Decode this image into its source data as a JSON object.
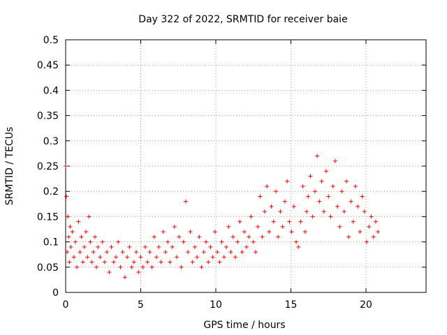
{
  "chart_data": {
    "type": "scatter",
    "title": "Day 322 of 2022, SRMTID for receiver baie",
    "xlabel": "GPS time / hours",
    "ylabel": "SRMTID / TECUs",
    "xlim": [
      0,
      24
    ],
    "ylim": [
      0,
      0.5
    ],
    "grid": true,
    "marker": "+",
    "color": "#ff0000",
    "x_ticks": [
      0,
      5,
      10,
      15,
      20
    ],
    "x_tick_labels": [
      "0",
      "5",
      "10",
      "15",
      "20"
    ],
    "y_ticks": [
      0,
      0.05,
      0.1,
      0.15,
      0.2,
      0.25,
      0.3,
      0.35,
      0.4,
      0.45,
      0.5
    ],
    "y_tick_labels": [
      "0",
      "0.05",
      "0.1",
      "0.15",
      "0.2",
      "0.25",
      "0.3",
      "0.35",
      "0.4",
      "0.45",
      "0.5"
    ],
    "series": [
      {
        "name": "SRMTID",
        "x": [
          0.0,
          0.05,
          0.1,
          0.15,
          0.2,
          0.25,
          0.3,
          0.35,
          0.45,
          0.55,
          0.65,
          0.75,
          0.85,
          0.95,
          1.05,
          1.15,
          1.25,
          1.35,
          1.45,
          1.55,
          1.65,
          1.75,
          1.85,
          1.95,
          2.05,
          2.15,
          2.3,
          2.45,
          2.6,
          2.75,
          2.9,
          3.05,
          3.2,
          3.35,
          3.5,
          3.65,
          3.8,
          3.95,
          4.1,
          4.25,
          4.4,
          4.55,
          4.7,
          4.85,
          5.0,
          5.15,
          5.3,
          5.45,
          5.6,
          5.75,
          5.9,
          6.05,
          6.2,
          6.35,
          6.5,
          6.65,
          6.8,
          6.95,
          7.1,
          7.25,
          7.4,
          7.55,
          7.7,
          7.85,
          8.0,
          8.15,
          8.3,
          8.45,
          8.6,
          8.75,
          8.9,
          9.05,
          9.2,
          9.35,
          9.5,
          9.65,
          9.8,
          9.95,
          10.1,
          10.25,
          10.4,
          10.55,
          10.7,
          10.85,
          11.0,
          11.15,
          11.3,
          11.45,
          11.6,
          11.75,
          11.9,
          12.05,
          12.2,
          12.35,
          12.5,
          12.65,
          12.8,
          12.95,
          13.1,
          13.25,
          13.4,
          13.55,
          13.7,
          13.85,
          14.0,
          14.15,
          14.3,
          14.45,
          14.6,
          14.75,
          14.9,
          15.05,
          15.2,
          15.35,
          15.5,
          15.65,
          15.8,
          15.95,
          16.05,
          16.15,
          16.3,
          16.45,
          16.6,
          16.75,
          16.9,
          17.05,
          17.2,
          17.35,
          17.5,
          17.65,
          17.8,
          17.95,
          18.1,
          18.25,
          18.4,
          18.55,
          18.7,
          18.85,
          19.0,
          19.15,
          19.3,
          19.45,
          19.6,
          19.75,
          19.9,
          20.05,
          20.2,
          20.35,
          20.5,
          20.65,
          20.8
        ],
        "values": [
          0.25,
          0.19,
          0.08,
          0.15,
          0.11,
          0.06,
          0.13,
          0.09,
          0.12,
          0.07,
          0.1,
          0.05,
          0.14,
          0.08,
          0.11,
          0.06,
          0.09,
          0.12,
          0.07,
          0.15,
          0.1,
          0.06,
          0.08,
          0.11,
          0.05,
          0.09,
          0.07,
          0.1,
          0.06,
          0.08,
          0.04,
          0.09,
          0.06,
          0.07,
          0.1,
          0.05,
          0.08,
          0.03,
          0.07,
          0.09,
          0.05,
          0.06,
          0.08,
          0.04,
          0.07,
          0.05,
          0.09,
          0.06,
          0.08,
          0.05,
          0.11,
          0.07,
          0.09,
          0.06,
          0.12,
          0.08,
          0.1,
          0.06,
          0.09,
          0.13,
          0.07,
          0.11,
          0.05,
          0.1,
          0.18,
          0.08,
          0.12,
          0.06,
          0.09,
          0.07,
          0.11,
          0.05,
          0.08,
          0.1,
          0.06,
          0.09,
          0.07,
          0.12,
          0.08,
          0.06,
          0.1,
          0.07,
          0.09,
          0.13,
          0.08,
          0.11,
          0.07,
          0.1,
          0.14,
          0.08,
          0.12,
          0.09,
          0.11,
          0.15,
          0.1,
          0.08,
          0.13,
          0.19,
          0.11,
          0.16,
          0.21,
          0.12,
          0.17,
          0.14,
          0.2,
          0.11,
          0.16,
          0.13,
          0.18,
          0.22,
          0.14,
          0.12,
          0.17,
          0.1,
          0.09,
          0.14,
          0.21,
          0.12,
          0.16,
          0.19,
          0.23,
          0.15,
          0.2,
          0.27,
          0.18,
          0.22,
          0.16,
          0.24,
          0.19,
          0.15,
          0.21,
          0.26,
          0.17,
          0.13,
          0.2,
          0.16,
          0.22,
          0.11,
          0.18,
          0.14,
          0.21,
          0.17,
          0.12,
          0.19,
          0.16,
          0.1,
          0.13,
          0.15,
          0.11,
          0.14,
          0.12
        ]
      }
    ]
  }
}
